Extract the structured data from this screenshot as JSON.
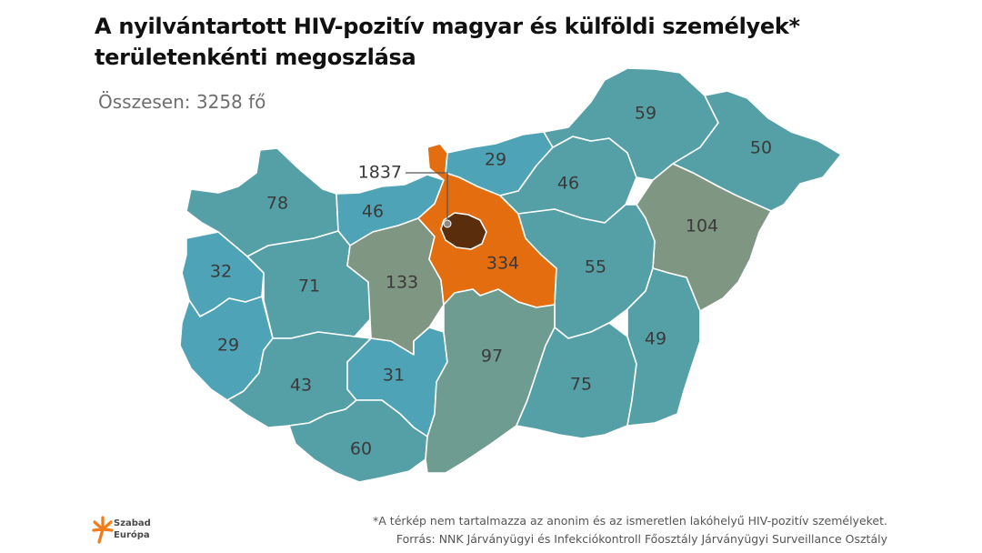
{
  "title": {
    "line1": "A nyilvántartott HIV-pozitív magyar és külföldi személyek*",
    "line2": "területenkénti megoszlása"
  },
  "total_label": "Összesen: 3258 fő",
  "colors": {
    "teal_blue": "#4ea4b6",
    "teal": "#55a0a6",
    "gray_green": "#6f9c90",
    "olive": "#7f9682",
    "orange": "#e46d10",
    "dark_brown": "#5a2d0c"
  },
  "regions": [
    {
      "name": "Győr-Moson-Sopron",
      "value": "78"
    },
    {
      "name": "Komárom-Esztergom",
      "value": "46"
    },
    {
      "name": "Vas",
      "value": "32"
    },
    {
      "name": "Veszprém",
      "value": "71"
    },
    {
      "name": "Fejér",
      "value": "133"
    },
    {
      "name": "Zala",
      "value": "29"
    },
    {
      "name": "Somogy",
      "value": "43"
    },
    {
      "name": "Tolna",
      "value": "31"
    },
    {
      "name": "Baranya",
      "value": "60"
    },
    {
      "name": "Nógrád",
      "value": "29"
    },
    {
      "name": "Pest",
      "value": "334"
    },
    {
      "name": "Budapest",
      "value": "1837"
    },
    {
      "name": "Heves",
      "value": "46"
    },
    {
      "name": "Borsod-Abaúj-Zemplén",
      "value": "59"
    },
    {
      "name": "Szabolcs-Szatmár-Bereg",
      "value": "50"
    },
    {
      "name": "Hajdú-Bihar",
      "value": "104"
    },
    {
      "name": "Jász-Nagykun-Szolnok",
      "value": "55"
    },
    {
      "name": "Bács-Kiskun",
      "value": "97"
    },
    {
      "name": "Csongrád",
      "value": "75"
    },
    {
      "name": "Békés",
      "value": "49"
    }
  ],
  "footnote": {
    "line1": "*A térkép nem tartalmazza az anonim és az ismeretlen lakóhelyű HIV-pozitív személyeket.",
    "line2": "Forrás: NNK Járványügyi és Infekciókontroll Főosztály Járványügyi Surveillance Osztály"
  },
  "logo": {
    "line1": "Szabad",
    "line2": "Európa",
    "icon": "szabad-europa-logo-icon"
  }
}
